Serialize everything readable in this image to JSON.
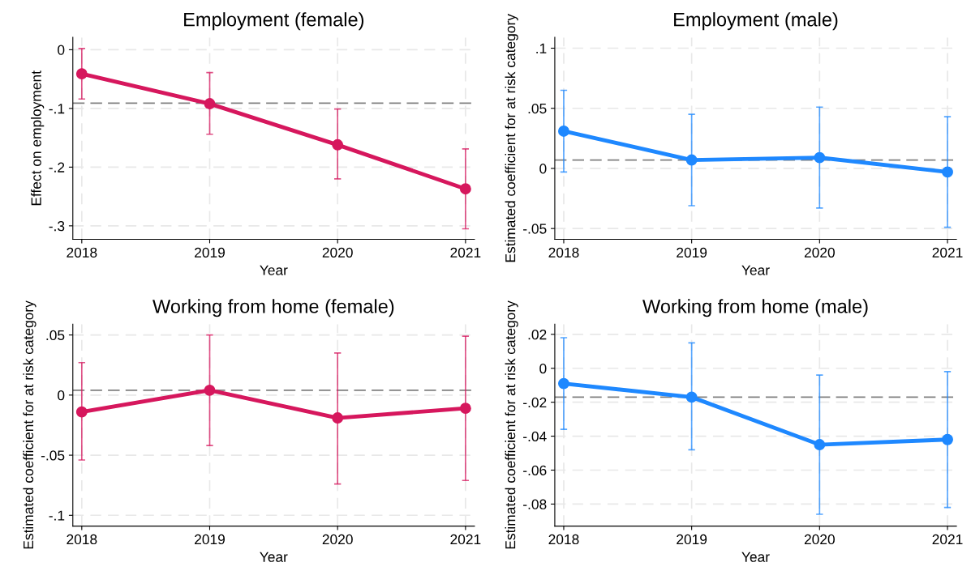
{
  "chart_data": [
    {
      "type": "line",
      "title": "Employment (female)",
      "xlabel": "Year",
      "ylabel": "Effect on employment",
      "x": [
        2018,
        2019,
        2020,
        2021
      ],
      "series": [
        {
          "color": "#d6175d",
          "values": [
            -0.041,
            -0.092,
            -0.162,
            -0.237
          ],
          "errors": [
            [
              -0.084,
              0.002
            ],
            [
              -0.144,
              -0.039
            ],
            [
              -0.22,
              -0.101
            ],
            [
              -0.305,
              -0.169
            ]
          ]
        }
      ],
      "xlim": [
        2017.93,
        2021.07
      ],
      "xticks": [
        2018,
        2019,
        2020,
        2021
      ],
      "ylim": [
        -0.323,
        0.021
      ],
      "yticks": [
        0,
        {
          "value": -0.1,
          "label": "-.1"
        },
        {
          "value": -0.2,
          "label": "-.2"
        },
        {
          "value": -0.3,
          "label": "-.3"
        }
      ],
      "ref_lines": [
        {
          "axis": "y",
          "value": -0.091,
          "color": "#808080",
          "line_style": "dashed"
        }
      ],
      "grid": true,
      "marker": "circle",
      "line_style": "solid"
    },
    {
      "type": "line",
      "title": "Employment (male)",
      "xlabel": "Year",
      "ylabel": "Estimated coefficient for at risk category",
      "x": [
        2018,
        2019,
        2020,
        2021
      ],
      "series": [
        {
          "color": "#1e88ff",
          "values": [
            0.031,
            0.007,
            0.009,
            -0.003
          ],
          "errors": [
            [
              -0.003,
              0.065
            ],
            [
              -0.031,
              0.045
            ],
            [
              -0.033,
              0.051
            ],
            [
              -0.049,
              0.043
            ]
          ]
        }
      ],
      "xlim": [
        2017.93,
        2021.07
      ],
      "xticks": [
        2018,
        2019,
        2020,
        2021
      ],
      "ylim": [
        -0.059,
        0.109
      ],
      "yticks": [
        {
          "value": -0.05,
          "label": "-.05"
        },
        0,
        {
          "value": 0.05,
          "label": ".05"
        },
        {
          "value": 0.1,
          "label": ".1"
        }
      ],
      "ref_lines": [
        {
          "axis": "y",
          "value": 0.007,
          "color": "#808080",
          "line_style": "dashed"
        }
      ],
      "grid": true,
      "marker": "circle",
      "line_style": "solid"
    },
    {
      "type": "line",
      "title": "Working from home (female)",
      "xlabel": "Year",
      "ylabel": "Estimated coefficient for at risk category",
      "x": [
        2018,
        2019,
        2020,
        2021
      ],
      "series": [
        {
          "color": "#d6175d",
          "values": [
            -0.014,
            0.004,
            -0.019,
            -0.011
          ],
          "errors": [
            [
              -0.054,
              0.027
            ],
            [
              -0.042,
              0.05
            ],
            [
              -0.074,
              0.035
            ],
            [
              -0.071,
              0.049
            ]
          ]
        }
      ],
      "xlim": [
        2017.93,
        2021.07
      ],
      "xticks": [
        2018,
        2019,
        2020,
        2021
      ],
      "ylim": [
        -0.109,
        0.059
      ],
      "yticks": [
        {
          "value": -0.1,
          "label": "-.1"
        },
        {
          "value": -0.05,
          "label": "-.05"
        },
        0,
        {
          "value": 0.05,
          "label": ".05"
        }
      ],
      "ref_lines": [
        {
          "axis": "y",
          "value": 0.004,
          "color": "#808080",
          "line_style": "dashed"
        }
      ],
      "grid": true,
      "marker": "circle",
      "line_style": "solid"
    },
    {
      "type": "line",
      "title": "Working from home (male)",
      "xlabel": "Year",
      "ylabel": "Estimated coefficient for at risk category",
      "x": [
        2018,
        2019,
        2020,
        2021
      ],
      "series": [
        {
          "color": "#1e88ff",
          "values": [
            -0.009,
            -0.017,
            -0.045,
            -0.042
          ],
          "errors": [
            [
              -0.036,
              0.018
            ],
            [
              -0.048,
              0.015
            ],
            [
              -0.086,
              -0.004
            ],
            [
              -0.082,
              -0.002
            ]
          ]
        }
      ],
      "xlim": [
        2017.93,
        2021.07
      ],
      "xticks": [
        2018,
        2019,
        2020,
        2021
      ],
      "ylim": [
        -0.093,
        0.026
      ],
      "yticks": [
        {
          "value": -0.08,
          "label": "-.08"
        },
        {
          "value": -0.06,
          "label": "-.06"
        },
        {
          "value": -0.04,
          "label": "-.04"
        },
        {
          "value": -0.02,
          "label": "-.02"
        },
        0,
        {
          "value": 0.02,
          "label": ".02"
        }
      ],
      "ref_lines": [
        {
          "axis": "y",
          "value": -0.017,
          "color": "#808080",
          "line_style": "dashed"
        }
      ],
      "grid": true,
      "marker": "circle",
      "line_style": "solid"
    }
  ]
}
